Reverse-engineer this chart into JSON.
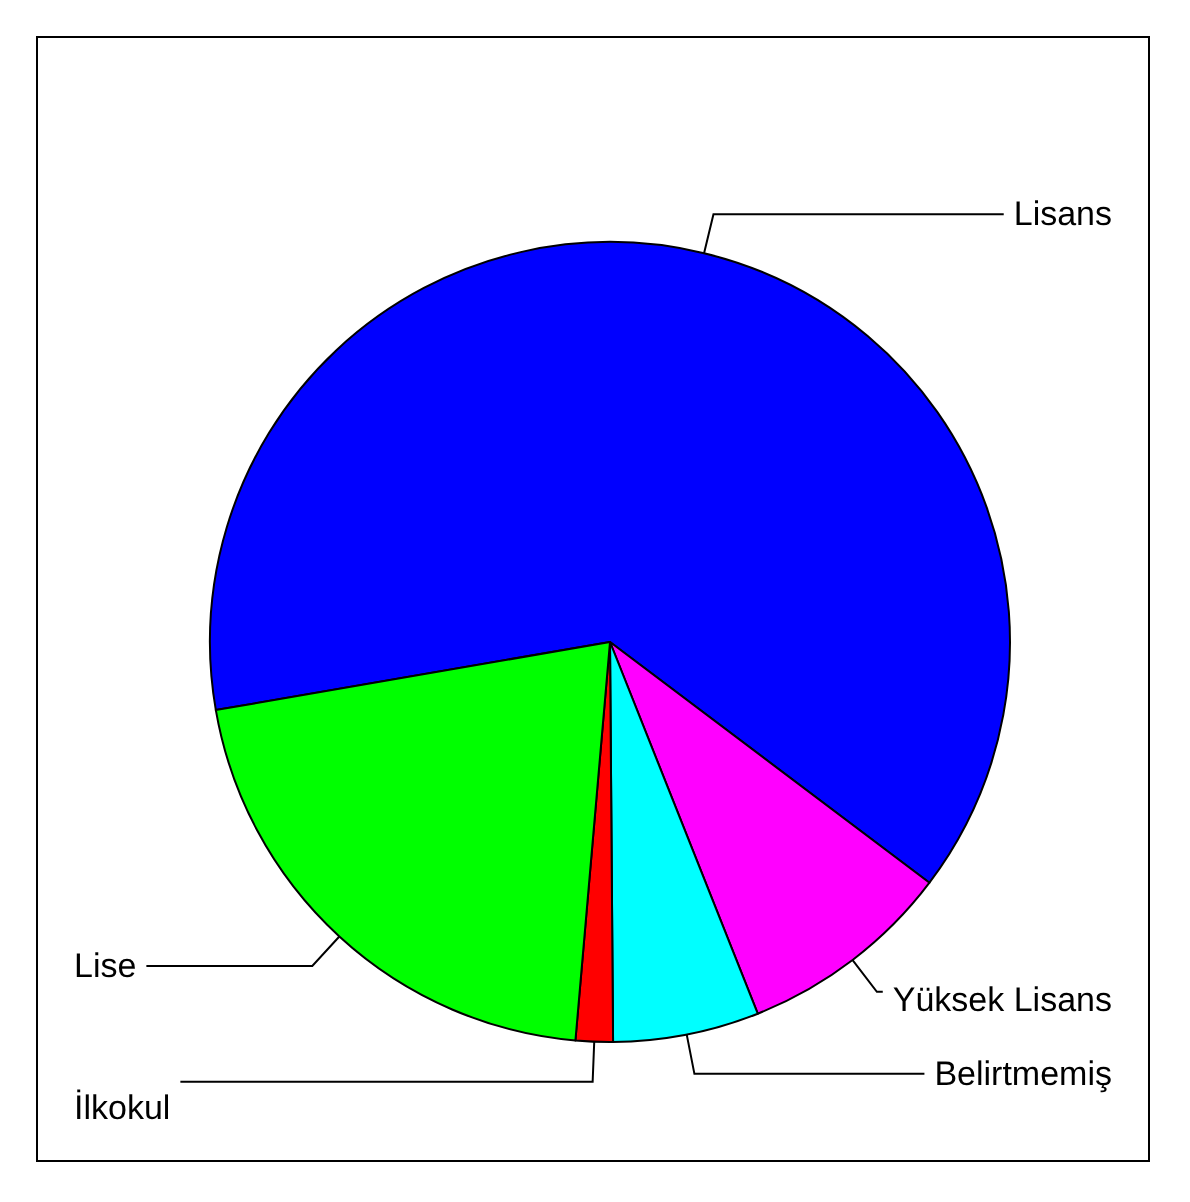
{
  "chart_data": {
    "type": "pie",
    "categories": [
      "Lisans",
      "Yüksek Lisans",
      "Belirtmemiş",
      "İlkokul",
      "Lise"
    ],
    "values": [
      63.0,
      8.7,
      5.9,
      1.5,
      20.9
    ],
    "colors": [
      "#0000ff",
      "#ff00ff",
      "#00ffff",
      "#ff0000",
      "#00ff00"
    ],
    "legend": false
  }
}
